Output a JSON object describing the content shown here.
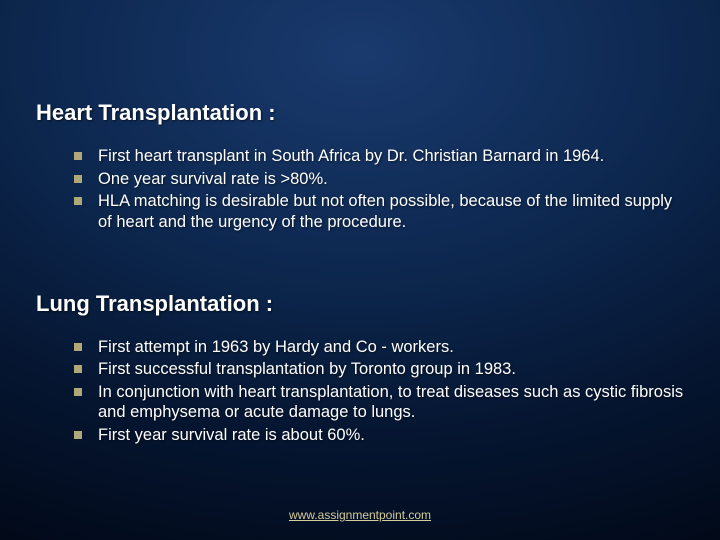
{
  "background": {
    "gradient_center": "#1a3a6e",
    "gradient_mid": "#0d2850",
    "gradient_outer": "#051530",
    "gradient_edge": "#000510"
  },
  "typography": {
    "title_fontsize": 22,
    "title_weight": "bold",
    "bullet_fontsize": 16.5,
    "footer_fontsize": 12,
    "text_color": "#ffffff",
    "bullet_marker_color": "#b0a878",
    "footer_link_color": "#d4cc9a"
  },
  "sections": [
    {
      "title": "Heart Transplantation :",
      "bullets": [
        "First heart transplant in South Africa by Dr. Christian Barnard in 1964.",
        "One year survival rate is >80%.",
        "HLA matching is desirable but not often possible, because of the limited supply of heart and the urgency of the procedure."
      ]
    },
    {
      "title": "Lung Transplantation :",
      "bullets": [
        "First attempt in 1963 by Hardy and Co - workers.",
        "First successful transplantation by Toronto group in 1983.",
        "In conjunction with heart transplantation, to treat diseases such as cystic fibrosis and emphysema or acute damage to lungs.",
        "First year survival rate is about 60%."
      ]
    }
  ],
  "footer": {
    "link_text": "www.assignmentpoint.com"
  }
}
